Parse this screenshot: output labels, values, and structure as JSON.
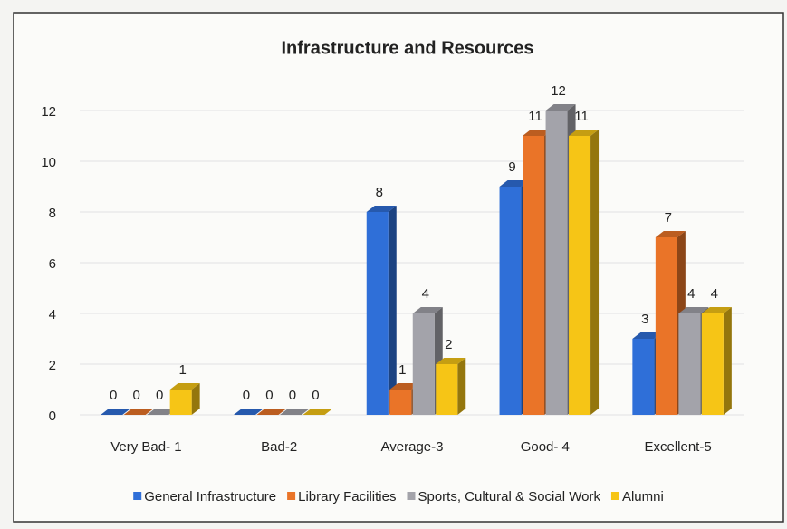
{
  "chart_data": {
    "type": "bar3d",
    "title": "Infrastructure and Resources",
    "categories": [
      "Very Bad- 1",
      "Bad-2",
      "Average-3",
      "Good- 4",
      "Excellent-5"
    ],
    "series": [
      {
        "name": "General Infrastructure",
        "color": "#2f6fd8",
        "values": [
          0,
          0,
          8,
          9,
          3
        ]
      },
      {
        "name": "Library Facilities",
        "color": "#ea7428",
        "values": [
          0,
          0,
          1,
          11,
          7
        ]
      },
      {
        "name": "Sports, Cultural & Social Work",
        "color": "#a3a3aa",
        "values": [
          0,
          0,
          4,
          12,
          4
        ]
      },
      {
        "name": "Alumni",
        "color": "#f6c516",
        "values": [
          1,
          0,
          2,
          11,
          4
        ]
      }
    ],
    "ylim": [
      0,
      12
    ],
    "yticks": [
      0,
      2,
      4,
      6,
      8,
      10,
      12
    ],
    "grid": true,
    "legend": "bottom"
  }
}
